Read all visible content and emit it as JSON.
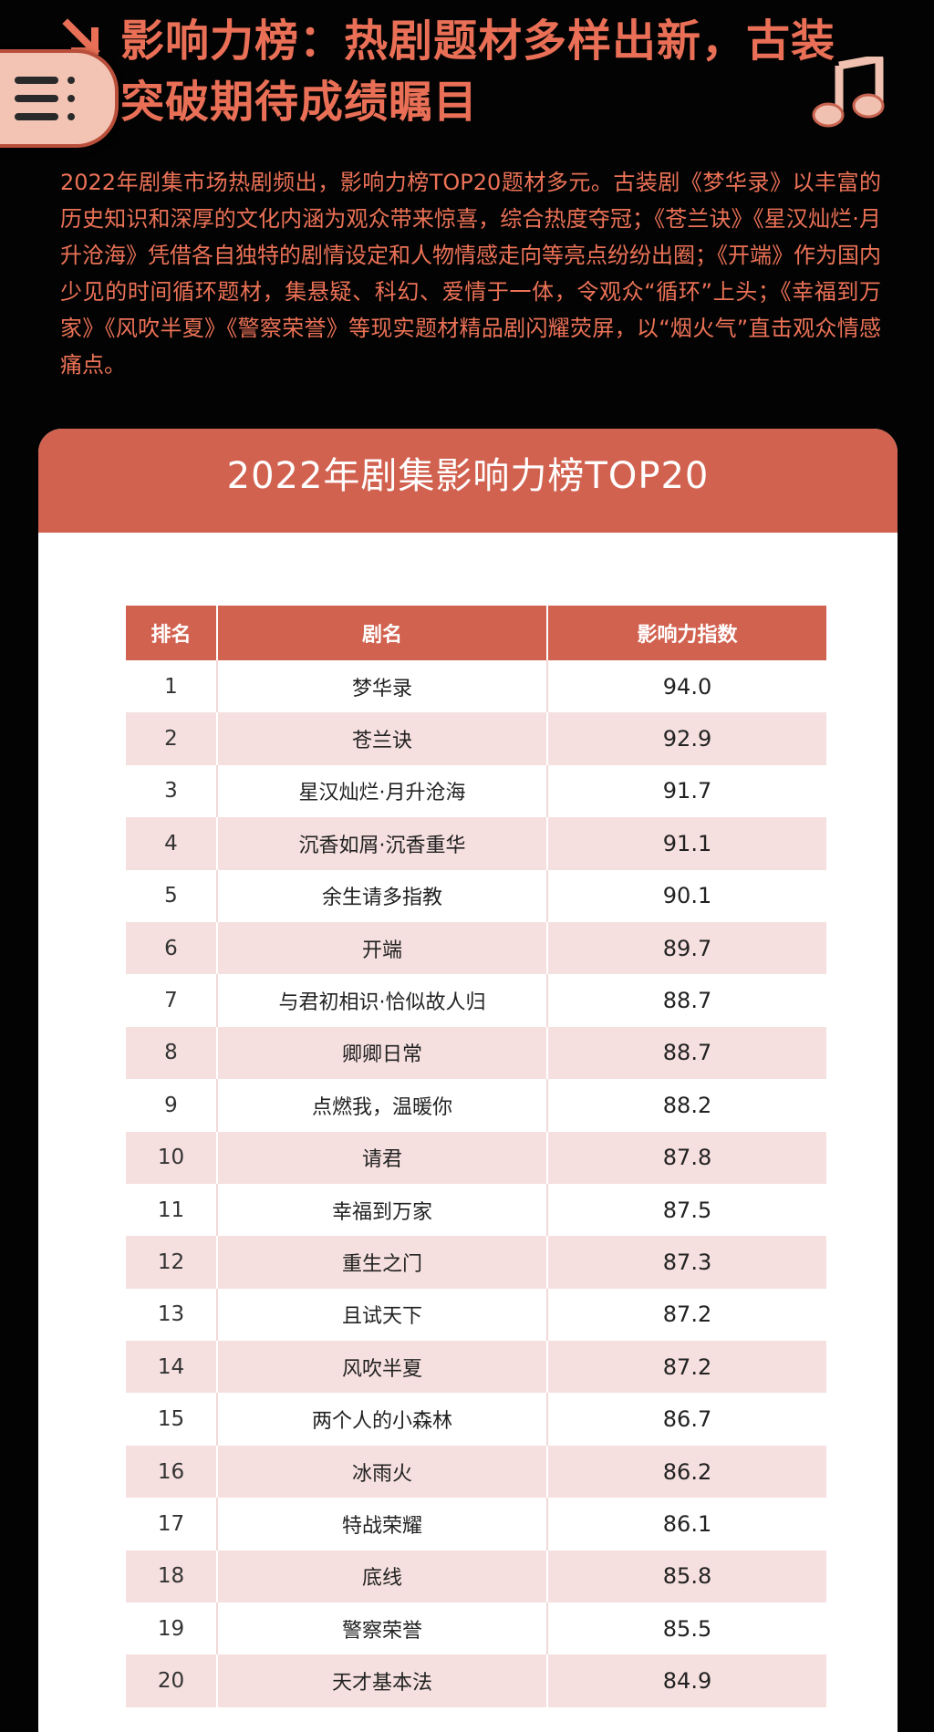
{
  "header": {
    "title": "影响力榜：热剧题材多样出新，古装突破期待成绩瞩目"
  },
  "intro": {
    "paragraph": "2022年剧集市场热剧频出，影响力榜TOP20题材多元。古装剧《梦华录》以丰富的历史知识和深厚的文化内涵为观众带来惊喜，综合热度夺冠；《苍兰诀》《星汉灿烂·月升沧海》凭借各自独特的剧情设定和人物情感走向等亮点纷纷出圈；《开端》作为国内少见的时间循环题材，集悬疑、科幻、爱情于一体，令观众“循环”上头；《幸福到万家》《风吹半夏》《警察荣誉》等现实题材精品剧闪耀荧屏，以“烟火气”直击观众情感痛点。"
  },
  "card": {
    "title": "2022年剧集影响力榜TOP20",
    "columns": [
      "排名",
      "剧名",
      "影响力指数"
    ],
    "rows": [
      {
        "rank": "1",
        "name": "梦华录",
        "score": "94.0"
      },
      {
        "rank": "2",
        "name": "苍兰诀",
        "score": "92.9"
      },
      {
        "rank": "3",
        "name": "星汉灿烂·月升沧海",
        "score": "91.7"
      },
      {
        "rank": "4",
        "name": "沉香如屑·沉香重华",
        "score": "91.1"
      },
      {
        "rank": "5",
        "name": "余生请多指教",
        "score": "90.1"
      },
      {
        "rank": "6",
        "name": "开端",
        "score": "89.7"
      },
      {
        "rank": "7",
        "name": "与君初相识·恰似故人归",
        "score": "88.7"
      },
      {
        "rank": "8",
        "name": "卿卿日常",
        "score": "88.7"
      },
      {
        "rank": "9",
        "name": "点燃我，温暖你",
        "score": "88.2"
      },
      {
        "rank": "10",
        "name": "请君",
        "score": "87.8"
      },
      {
        "rank": "11",
        "name": "幸福到万家",
        "score": "87.5"
      },
      {
        "rank": "12",
        "name": "重生之门",
        "score": "87.3"
      },
      {
        "rank": "13",
        "name": "且试天下",
        "score": "87.2"
      },
      {
        "rank": "14",
        "name": "风吹半夏",
        "score": "87.2"
      },
      {
        "rank": "15",
        "name": "两个人的小森林",
        "score": "86.7"
      },
      {
        "rank": "16",
        "name": "冰雨火",
        "score": "86.2"
      },
      {
        "rank": "17",
        "name": "特战荣耀",
        "score": "86.1"
      },
      {
        "rank": "18",
        "name": "底线",
        "score": "85.8"
      },
      {
        "rank": "19",
        "name": "警察荣誉",
        "score": "85.5"
      },
      {
        "rank": "20",
        "name": "天才基本法",
        "score": "84.9"
      }
    ]
  },
  "colors": {
    "accent": "#d26250",
    "headline": "#e96f56",
    "alt_row": "#f5e0df",
    "background": "#030303"
  },
  "icons": {
    "menu": "hamburger-menu-icon",
    "arrow": "arrow-down-right-icon",
    "music": "music-note-icon"
  }
}
